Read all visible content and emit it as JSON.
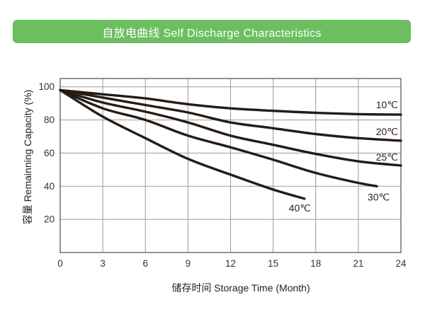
{
  "header": {
    "title": "自放电曲线 Self Discharge Characteristics",
    "bar_color": "#6cbe60",
    "text_color": "#ffffff"
  },
  "chart_data": {
    "type": "line",
    "title": "自放电曲线 Self Discharge Characteristics",
    "xlabel": "储存时间 Storage Time (Month)",
    "ylabel": "容量 Remainning Capacity (%)",
    "xlim": [
      0,
      24
    ],
    "ylim": [
      0,
      105
    ],
    "x_ticks": [
      0,
      3,
      6,
      9,
      12,
      15,
      18,
      21,
      24
    ],
    "y_ticks": [
      100,
      80,
      60,
      40,
      20
    ],
    "grid": true,
    "legend_position": "inline-labels-on-curves",
    "line_color": "#261b15",
    "grid_color": "#9a9a9a",
    "series": [
      {
        "name": "10℃",
        "x": [
          0,
          3,
          6,
          9,
          12,
          15,
          18,
          21,
          24
        ],
        "y": [
          98,
          95.5,
          93,
          89.5,
          87,
          85.5,
          84.3,
          83.5,
          83.2
        ],
        "label_anchor": "end",
        "label_dx": -4,
        "label_dy": -9
      },
      {
        "name": "20℃",
        "x": [
          0,
          3,
          6,
          9,
          12,
          15,
          18,
          21,
          24
        ],
        "y": [
          98,
          93.5,
          89,
          84.5,
          78.5,
          75,
          71.5,
          69,
          67.5
        ],
        "label_anchor": "end",
        "label_dx": -4,
        "label_dy": -8
      },
      {
        "name": "25℃",
        "x": [
          0,
          3,
          6,
          9,
          12,
          15,
          18,
          21,
          24
        ],
        "y": [
          98,
          90.5,
          85,
          78.5,
          70.5,
          65,
          59.5,
          55,
          52.5
        ],
        "label_anchor": "end",
        "label_dx": -4,
        "label_dy": -7
      },
      {
        "name": "30℃",
        "x": [
          0,
          3,
          6,
          9,
          12,
          15,
          18,
          21,
          22.3
        ],
        "y": [
          98,
          87,
          80,
          70.5,
          63.5,
          56,
          48,
          42,
          40
        ],
        "label_anchor": "start",
        "label_dx": -13,
        "label_dy": 20
      },
      {
        "name": "40℃",
        "x": [
          0,
          3,
          6,
          9,
          12,
          15,
          17.2
        ],
        "y": [
          98,
          82,
          69,
          56.5,
          47,
          38,
          32.5
        ],
        "label_anchor": "start",
        "label_dx": -22,
        "label_dy": 18
      }
    ]
  }
}
